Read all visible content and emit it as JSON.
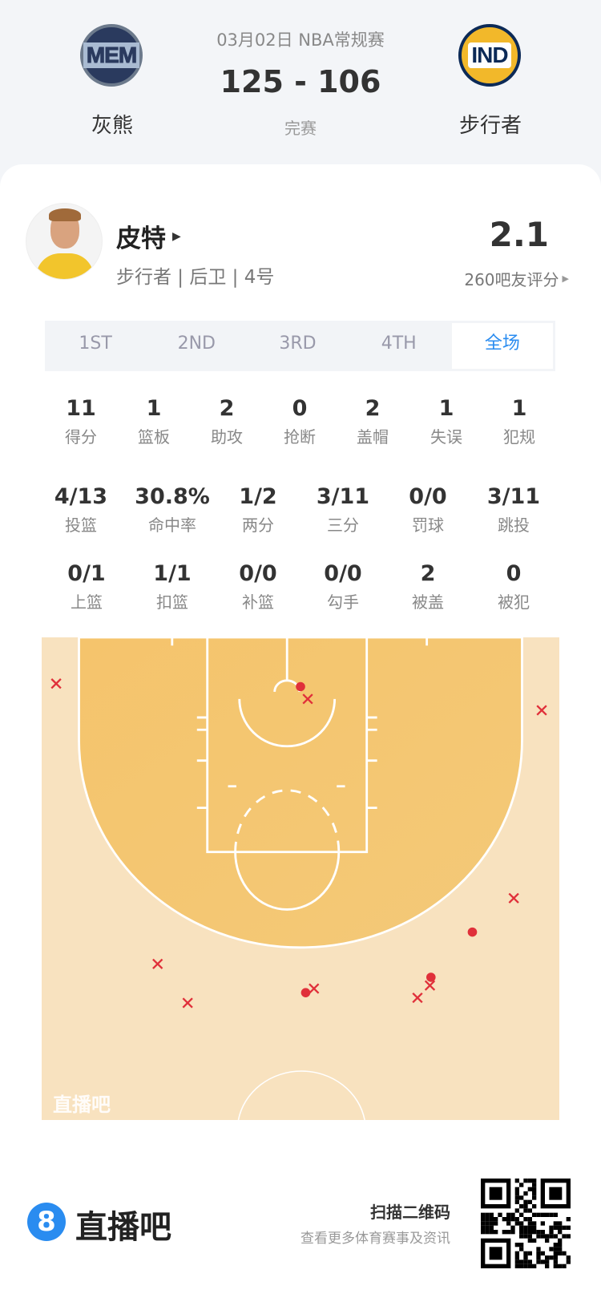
{
  "match": {
    "date_league": "03月02日 NBA常规赛",
    "score": "125 - 106",
    "status": "完赛",
    "home": {
      "abbr": "MEM",
      "name": "灰熊"
    },
    "away": {
      "abbr": "IND",
      "name": "步行者"
    }
  },
  "player": {
    "name": "皮特",
    "info": "步行者 | 后卫 | 4号",
    "rating": "2.1",
    "rating_count": "260吧友评分"
  },
  "tabs": [
    {
      "label": "1ST"
    },
    {
      "label": "2ND"
    },
    {
      "label": "3RD"
    },
    {
      "label": "4TH"
    },
    {
      "label": "全场",
      "active": true
    }
  ],
  "stats_row1": [
    {
      "v": "11",
      "l": "得分"
    },
    {
      "v": "1",
      "l": "篮板"
    },
    {
      "v": "2",
      "l": "助攻"
    },
    {
      "v": "0",
      "l": "抢断"
    },
    {
      "v": "2",
      "l": "盖帽"
    },
    {
      "v": "1",
      "l": "失误"
    },
    {
      "v": "1",
      "l": "犯规"
    }
  ],
  "stats_row2": [
    {
      "v": "4/13",
      "l": "投篮"
    },
    {
      "v": "30.8%",
      "l": "命中率"
    },
    {
      "v": "1/2",
      "l": "两分"
    },
    {
      "v": "3/11",
      "l": "三分"
    },
    {
      "v": "0/0",
      "l": "罚球"
    },
    {
      "v": "3/11",
      "l": "跳投"
    }
  ],
  "stats_row3": [
    {
      "v": "0/1",
      "l": "上篮"
    },
    {
      "v": "1/1",
      "l": "扣篮"
    },
    {
      "v": "0/0",
      "l": "补篮"
    },
    {
      "v": "0/0",
      "l": "勾手"
    },
    {
      "v": "2",
      "l": "被盖"
    },
    {
      "v": "0",
      "l": "被犯"
    }
  ],
  "shot_chart": {
    "watermark": "直播吧",
    "make_color": "#e0303a",
    "miss_color": "#e0303a",
    "shots_ft": [
      {
        "x": -23.6,
        "y": 4.5,
        "made": false
      },
      {
        "x": 0,
        "y": 4.8,
        "made": true
      },
      {
        "x": 0.7,
        "y": 6.0,
        "made": false
      },
      {
        "x": 23.3,
        "y": 7.1,
        "made": false
      },
      {
        "x": 20.6,
        "y": 25.4,
        "made": false
      },
      {
        "x": 16.6,
        "y": 28.7,
        "made": true
      },
      {
        "x": -13.8,
        "y": 31.8,
        "made": false
      },
      {
        "x": 12.6,
        "y": 33.1,
        "made": true
      },
      {
        "x": 12.5,
        "y": 33.9,
        "made": false
      },
      {
        "x": 11.3,
        "y": 35.1,
        "made": false
      },
      {
        "x": 0.5,
        "y": 34.6,
        "made": true
      },
      {
        "x": 1.3,
        "y": 34.2,
        "made": false
      },
      {
        "x": -10.9,
        "y": 35.6,
        "made": false
      }
    ]
  },
  "footer": {
    "brand": "直播吧",
    "brand_icon": "8",
    "qr_title": "扫描二维码",
    "qr_sub": "查看更多体育赛事及资讯"
  },
  "colors": {
    "accent": "#2a8cf0"
  }
}
